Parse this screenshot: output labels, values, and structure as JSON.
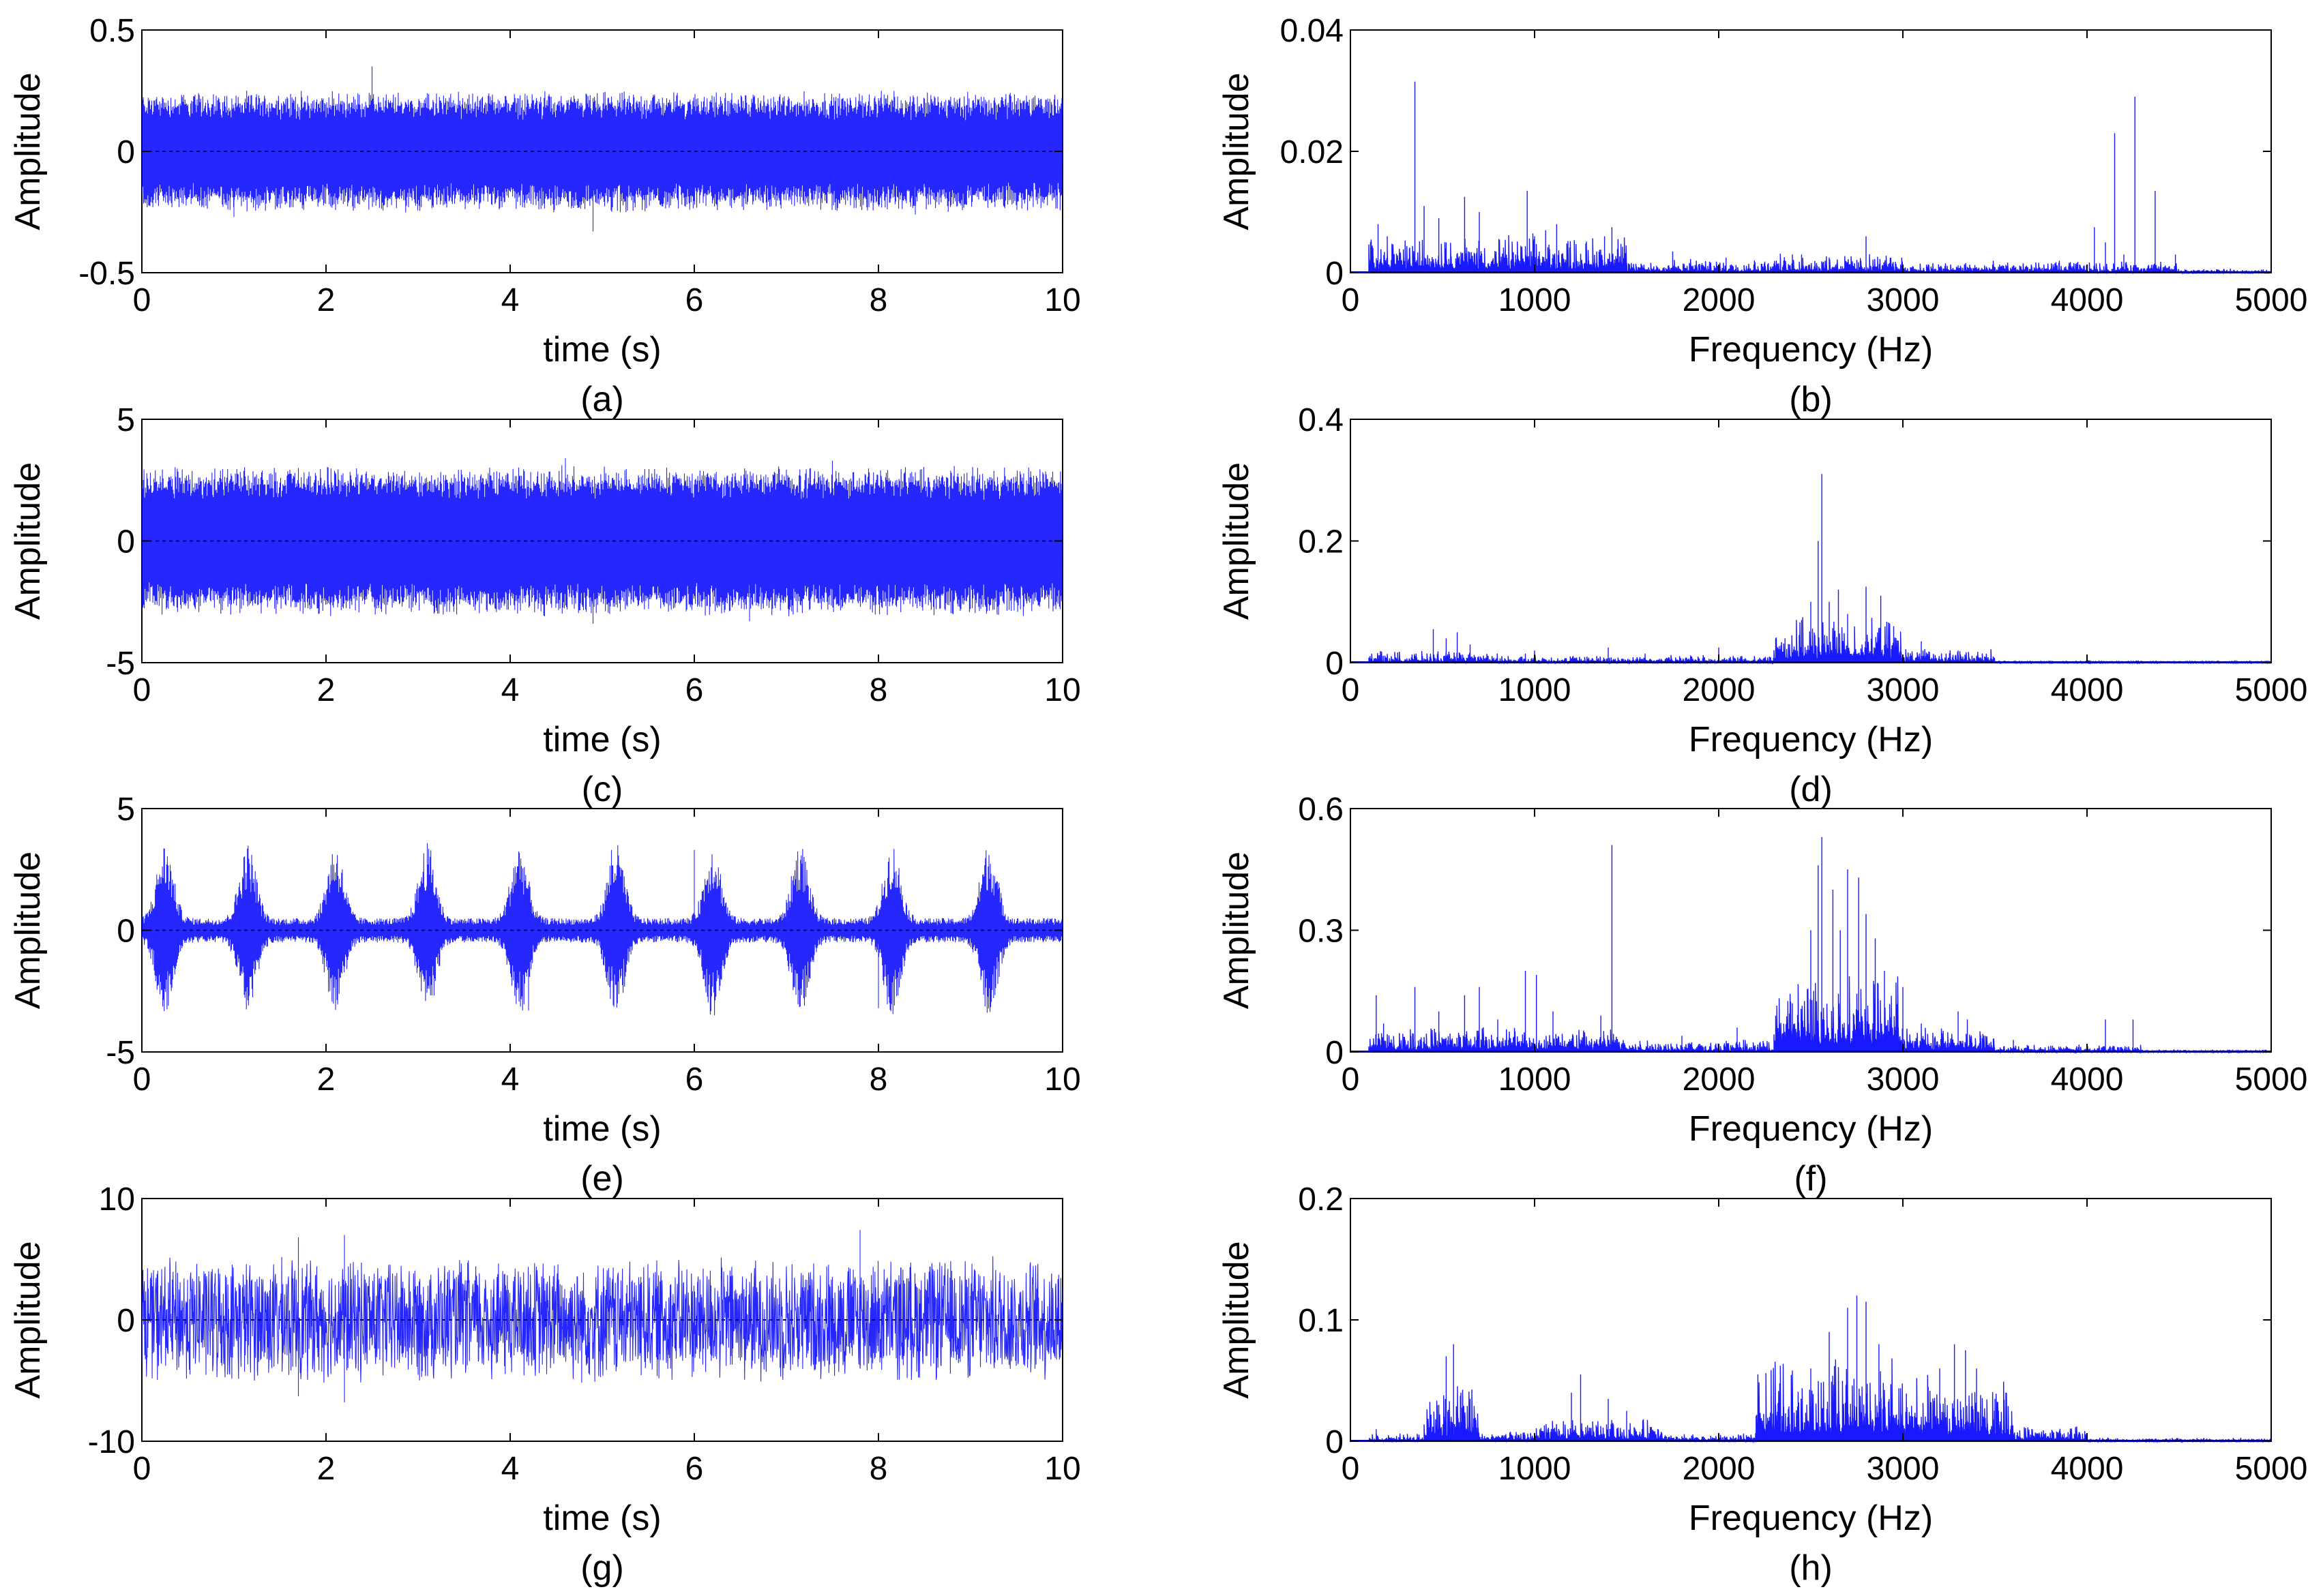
{
  "colors": {
    "signal": "#0000ff",
    "axis": "#000000",
    "background": "#ffffff"
  },
  "chart_data": [
    {
      "id": "a",
      "type": "line",
      "domain": "time",
      "caption": "(a)",
      "xlabel": "time (s)",
      "ylabel": "Amplitude",
      "xlim": [
        0,
        10
      ],
      "ylim": [
        -0.5,
        0.5
      ],
      "xticks": [
        0,
        2,
        4,
        6,
        8,
        10
      ],
      "yticks": [
        -0.5,
        0,
        0.5
      ],
      "xtick_labels": [
        "0",
        "2",
        "4",
        "6",
        "8",
        "10"
      ],
      "ytick_labels": [
        "-0.5",
        "0",
        "0.5"
      ],
      "pattern": {
        "kind": "steady",
        "base_amplitude": 0.19,
        "noise_amplitude": 0.07,
        "peaks": [
          [
            2.5,
            0.35
          ],
          [
            4.9,
            -0.33
          ],
          [
            1.0,
            -0.27
          ],
          [
            8.4,
            -0.26
          ]
        ]
      }
    },
    {
      "id": "b",
      "type": "line",
      "domain": "frequency",
      "caption": "(b)",
      "xlabel": "Frequency (Hz)",
      "ylabel": "Amplitude",
      "xlim": [
        0,
        5000
      ],
      "ylim": [
        0,
        0.04
      ],
      "xticks": [
        0,
        1000,
        2000,
        3000,
        4000,
        5000
      ],
      "yticks": [
        0,
        0.02,
        0.04
      ],
      "xtick_labels": [
        "0",
        "1000",
        "2000",
        "3000",
        "4000",
        "5000"
      ],
      "ytick_labels": [
        "0",
        "0.02",
        "0.04"
      ],
      "peaks": [
        [
          150,
          0.008
        ],
        [
          200,
          0.006
        ],
        [
          320,
          0.004
        ],
        [
          350,
          0.0315
        ],
        [
          400,
          0.011
        ],
        [
          480,
          0.009
        ],
        [
          520,
          0.005
        ],
        [
          620,
          0.0125
        ],
        [
          700,
          0.01
        ],
        [
          960,
          0.0135
        ],
        [
          1000,
          0.006
        ],
        [
          1060,
          0.007
        ],
        [
          1120,
          0.008
        ],
        [
          1380,
          0.006
        ],
        [
          1420,
          0.0075
        ],
        [
          1750,
          0.0035
        ],
        [
          2040,
          0.0025
        ],
        [
          2400,
          0.003
        ],
        [
          2450,
          0.003
        ],
        [
          2800,
          0.006
        ],
        [
          2600,
          0.0025
        ],
        [
          3300,
          0.0012
        ],
        [
          3850,
          0.002
        ],
        [
          3950,
          0.0018
        ],
        [
          4040,
          0.0075
        ],
        [
          4100,
          0.005
        ],
        [
          4150,
          0.023
        ],
        [
          4200,
          0.003
        ],
        [
          4260,
          0.029
        ],
        [
          4370,
          0.0135
        ],
        [
          4480,
          0.003
        ]
      ],
      "floor": {
        "ranges": [
          [
            100,
            1500,
            0.004
          ],
          [
            1500,
            2300,
            0.0015
          ],
          [
            2300,
            3000,
            0.002
          ],
          [
            3000,
            4500,
            0.0012
          ],
          [
            4500,
            5000,
            0.0004
          ]
        ]
      }
    },
    {
      "id": "c",
      "type": "line",
      "domain": "time",
      "caption": "(c)",
      "xlabel": "time (s)",
      "ylabel": "Amplitude",
      "xlim": [
        0,
        10
      ],
      "ylim": [
        -5,
        5
      ],
      "xticks": [
        0,
        2,
        4,
        6,
        8,
        10
      ],
      "yticks": [
        -5,
        0,
        5
      ],
      "xtick_labels": [
        "0",
        "2",
        "4",
        "6",
        "8",
        "10"
      ],
      "ytick_labels": [
        "-5",
        "0",
        "5"
      ],
      "pattern": {
        "kind": "steady",
        "base_amplitude": 2.4,
        "noise_amplitude": 0.8,
        "peaks": [
          [
            4.6,
            3.4
          ],
          [
            7.5,
            3.3
          ],
          [
            6.6,
            -3.3
          ],
          [
            4.9,
            -3.4
          ]
        ]
      }
    },
    {
      "id": "d",
      "type": "line",
      "domain": "frequency",
      "caption": "(d)",
      "xlabel": "Frequency (Hz)",
      "ylabel": "Amplitude",
      "xlim": [
        0,
        5000
      ],
      "ylim": [
        0,
        0.4
      ],
      "xticks": [
        0,
        1000,
        2000,
        3000,
        4000,
        5000
      ],
      "yticks": [
        0,
        0.2,
        0.4
      ],
      "xtick_labels": [
        "0",
        "1000",
        "2000",
        "3000",
        "4000",
        "5000"
      ],
      "ytick_labels": [
        "0",
        "0.2",
        "0.4"
      ],
      "peaks": [
        [
          150,
          0.012
        ],
        [
          450,
          0.055
        ],
        [
          520,
          0.04
        ],
        [
          580,
          0.05
        ],
        [
          650,
          0.03
        ],
        [
          950,
          0.015
        ],
        [
          1000,
          0.02
        ],
        [
          1400,
          0.025
        ],
        [
          1600,
          0.015
        ],
        [
          2000,
          0.025
        ],
        [
          2360,
          0.04
        ],
        [
          2450,
          0.07
        ],
        [
          2500,
          0.1
        ],
        [
          2540,
          0.2
        ],
        [
          2560,
          0.31
        ],
        [
          2600,
          0.1
        ],
        [
          2650,
          0.12
        ],
        [
          2700,
          0.08
        ],
        [
          2800,
          0.125
        ],
        [
          2880,
          0.11
        ],
        [
          2950,
          0.06
        ],
        [
          3100,
          0.035
        ],
        [
          3300,
          0.02
        ]
      ],
      "floor": {
        "ranges": [
          [
            100,
            800,
            0.012
          ],
          [
            800,
            2300,
            0.008
          ],
          [
            2300,
            3000,
            0.045
          ],
          [
            3000,
            3500,
            0.015
          ],
          [
            3500,
            5000,
            0.002
          ]
        ]
      }
    },
    {
      "id": "e",
      "type": "line",
      "domain": "time",
      "caption": "(e)",
      "xlabel": "time (s)",
      "ylabel": "Amplitude",
      "xlim": [
        0,
        10
      ],
      "ylim": [
        -5,
        5
      ],
      "xticks": [
        0,
        2,
        4,
        6,
        8,
        10
      ],
      "yticks": [
        -5,
        0,
        5
      ],
      "xtick_labels": [
        "0",
        "2",
        "4",
        "6",
        "8",
        "10"
      ],
      "ytick_labels": [
        "-5",
        "0",
        "5"
      ],
      "pattern": {
        "kind": "bursts",
        "base_amplitude": 0.5,
        "burst_amplitude": 3.1,
        "burst_centers": [
          0.25,
          1.15,
          2.1,
          3.1,
          4.1,
          5.15,
          6.2,
          7.15,
          8.15,
          9.2
        ],
        "burst_width": 0.16,
        "peaks": [
          [
            4.2,
            -3.3
          ],
          [
            5.1,
            3.3
          ],
          [
            6.0,
            3.3
          ],
          [
            8.0,
            -3.2
          ]
        ]
      }
    },
    {
      "id": "f",
      "type": "line",
      "domain": "frequency",
      "caption": "(f)",
      "xlabel": "Frequency (Hz)",
      "ylabel": "Amplitude",
      "xlim": [
        0,
        5000
      ],
      "ylim": [
        0,
        0.6
      ],
      "xticks": [
        0,
        1000,
        2000,
        3000,
        4000,
        5000
      ],
      "yticks": [
        0,
        0.3,
        0.6
      ],
      "xtick_labels": [
        "0",
        "1000",
        "2000",
        "3000",
        "4000",
        "5000"
      ],
      "ytick_labels": [
        "0",
        "0.3",
        "0.6"
      ],
      "peaks": [
        [
          140,
          0.14
        ],
        [
          180,
          0.07
        ],
        [
          350,
          0.16
        ],
        [
          480,
          0.1
        ],
        [
          620,
          0.14
        ],
        [
          700,
          0.16
        ],
        [
          800,
          0.08
        ],
        [
          950,
          0.2
        ],
        [
          1010,
          0.19
        ],
        [
          1100,
          0.1
        ],
        [
          1360,
          0.09
        ],
        [
          1420,
          0.51
        ],
        [
          1800,
          0.04
        ],
        [
          2100,
          0.06
        ],
        [
          2400,
          0.12
        ],
        [
          2500,
          0.3
        ],
        [
          2540,
          0.46
        ],
        [
          2560,
          0.53
        ],
        [
          2620,
          0.4
        ],
        [
          2660,
          0.3
        ],
        [
          2700,
          0.45
        ],
        [
          2760,
          0.43
        ],
        [
          2800,
          0.34
        ],
        [
          2850,
          0.28
        ],
        [
          2900,
          0.2
        ],
        [
          3000,
          0.16
        ],
        [
          3100,
          0.07
        ],
        [
          3300,
          0.1
        ],
        [
          3350,
          0.08
        ],
        [
          3600,
          0.03
        ],
        [
          4100,
          0.08
        ],
        [
          4250,
          0.08
        ]
      ],
      "floor": {
        "ranges": [
          [
            100,
            1500,
            0.04
          ],
          [
            1500,
            2300,
            0.02
          ],
          [
            2300,
            3000,
            0.12
          ],
          [
            3000,
            3500,
            0.04
          ],
          [
            3500,
            4300,
            0.012
          ],
          [
            4300,
            5000,
            0.004
          ]
        ]
      }
    },
    {
      "id": "g",
      "type": "line",
      "domain": "time",
      "caption": "(g)",
      "xlabel": "time (s)",
      "ylabel": "Amplitude",
      "xlim": [
        0,
        10
      ],
      "ylim": [
        -10,
        10
      ],
      "xticks": [
        0,
        2,
        4,
        6,
        8,
        10
      ],
      "yticks": [
        -10,
        0,
        10
      ],
      "xtick_labels": [
        "0",
        "2",
        "4",
        "6",
        "8",
        "10"
      ],
      "ytick_labels": [
        "-10",
        "0",
        "10"
      ],
      "pattern": {
        "kind": "noise",
        "base_amplitude": 3.2,
        "noise_amplitude": 2.2,
        "peaks": [
          [
            1.7,
            6.8
          ],
          [
            2.2,
            7.0
          ],
          [
            7.8,
            7.4
          ],
          [
            2.2,
            -6.8
          ],
          [
            1.7,
            -6.3
          ]
        ]
      }
    },
    {
      "id": "h",
      "type": "line",
      "domain": "frequency",
      "caption": "(h)",
      "xlabel": "Frequency (Hz)",
      "ylabel": "Amplitude",
      "xlim": [
        0,
        5000
      ],
      "ylim": [
        0,
        0.2
      ],
      "xticks": [
        0,
        1000,
        2000,
        3000,
        4000,
        5000
      ],
      "yticks": [
        0,
        0.1,
        0.2
      ],
      "xtick_labels": [
        "0",
        "1000",
        "2000",
        "3000",
        "4000",
        "5000"
      ],
      "ytick_labels": [
        "0",
        "0.1",
        "0.2"
      ],
      "peaks": [
        [
          140,
          0.01
        ],
        [
          480,
          0.03
        ],
        [
          520,
          0.07
        ],
        [
          560,
          0.08
        ],
        [
          600,
          0.04
        ],
        [
          650,
          0.035
        ],
        [
          1200,
          0.04
        ],
        [
          1250,
          0.055
        ],
        [
          1400,
          0.035
        ],
        [
          1500,
          0.025
        ],
        [
          2350,
          0.03
        ],
        [
          2500,
          0.06
        ],
        [
          2600,
          0.09
        ],
        [
          2700,
          0.11
        ],
        [
          2750,
          0.12
        ],
        [
          2800,
          0.115
        ],
        [
          2870,
          0.08
        ],
        [
          3200,
          0.06
        ],
        [
          3280,
          0.08
        ],
        [
          3340,
          0.075
        ],
        [
          3400,
          0.06
        ],
        [
          3500,
          0.035
        ],
        [
          3700,
          0.01
        ]
      ],
      "floor": {
        "ranges": [
          [
            100,
            400,
            0.004
          ],
          [
            400,
            700,
            0.03
          ],
          [
            700,
            1000,
            0.005
          ],
          [
            1000,
            1700,
            0.012
          ],
          [
            1700,
            2200,
            0.004
          ],
          [
            2200,
            3000,
            0.045
          ],
          [
            3000,
            3600,
            0.035
          ],
          [
            3600,
            4000,
            0.008
          ],
          [
            4000,
            5000,
            0.002
          ]
        ]
      }
    }
  ]
}
